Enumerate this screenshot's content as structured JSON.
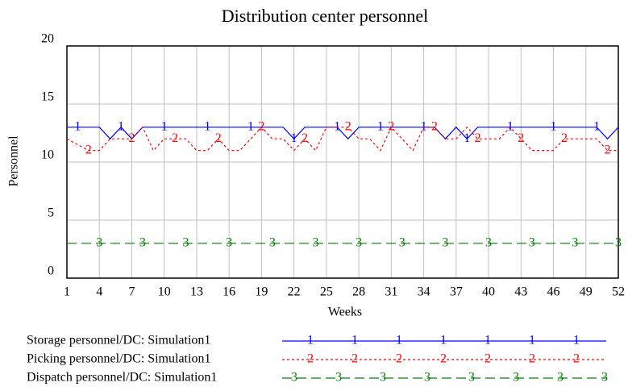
{
  "chart_data": {
    "type": "line",
    "title": "Distribution center personnel",
    "x_label": "Weeks",
    "y_label": "Personnel",
    "x": [
      1,
      2,
      3,
      4,
      5,
      6,
      7,
      8,
      9,
      10,
      11,
      12,
      13,
      14,
      15,
      16,
      17,
      18,
      19,
      20,
      21,
      22,
      23,
      24,
      25,
      26,
      27,
      28,
      29,
      30,
      31,
      32,
      33,
      34,
      35,
      36,
      37,
      38,
      39,
      40,
      41,
      42,
      43,
      44,
      45,
      46,
      47,
      48,
      49,
      50,
      51,
      52
    ],
    "xlim": [
      1,
      52
    ],
    "xticks": [
      1,
      4,
      7,
      10,
      13,
      16,
      19,
      22,
      25,
      28,
      31,
      34,
      37,
      40,
      43,
      46,
      49,
      52
    ],
    "ylim": [
      0,
      20
    ],
    "yticks": [
      0,
      5,
      10,
      15,
      20
    ],
    "grid": true,
    "series": [
      {
        "name": "Storage personnel/DC: Simulation1",
        "color": "#0000ff",
        "marker": "1",
        "dash": "none",
        "values": [
          13,
          13,
          13,
          13,
          12,
          13,
          12,
          13,
          13,
          13,
          13,
          13,
          13,
          13,
          13,
          13,
          13,
          13,
          13,
          13,
          13,
          12,
          13,
          13,
          13,
          13,
          12,
          13,
          13,
          13,
          13,
          13,
          13,
          13,
          13,
          12,
          13,
          12,
          13,
          13,
          13,
          13,
          13,
          13,
          13,
          13,
          13,
          13,
          13,
          13,
          12,
          13
        ]
      },
      {
        "name": "Picking personnel/DC: Simulation1",
        "color": "#ff0000",
        "marker": "2",
        "dash": "3,3",
        "values": [
          12,
          11.5,
          11,
          11,
          12,
          12,
          12,
          13,
          11,
          12,
          12,
          12,
          11,
          11,
          12,
          11,
          11,
          12,
          13,
          12,
          12,
          11,
          12,
          11,
          13,
          13,
          13,
          12,
          12,
          11,
          13,
          12,
          11,
          13,
          13,
          12,
          12,
          13,
          12,
          12,
          12,
          13,
          12,
          11,
          11,
          11,
          12,
          12,
          12,
          12,
          11,
          11
        ]
      },
      {
        "name": "Dispatch personnel/DC: Simulation1",
        "color": "#008000",
        "marker": "3",
        "dash": "12,6",
        "values": [
          3,
          3,
          3,
          3,
          3,
          3,
          3,
          3,
          3,
          3,
          3,
          3,
          3,
          3,
          3,
          3,
          3,
          3,
          3,
          3,
          3,
          3,
          3,
          3,
          3,
          3,
          3,
          3,
          3,
          3,
          3,
          3,
          3,
          3,
          3,
          3,
          3,
          3,
          3,
          3,
          3,
          3,
          3,
          3,
          3,
          3,
          3,
          3,
          3,
          3,
          3,
          3
        ]
      }
    ]
  }
}
